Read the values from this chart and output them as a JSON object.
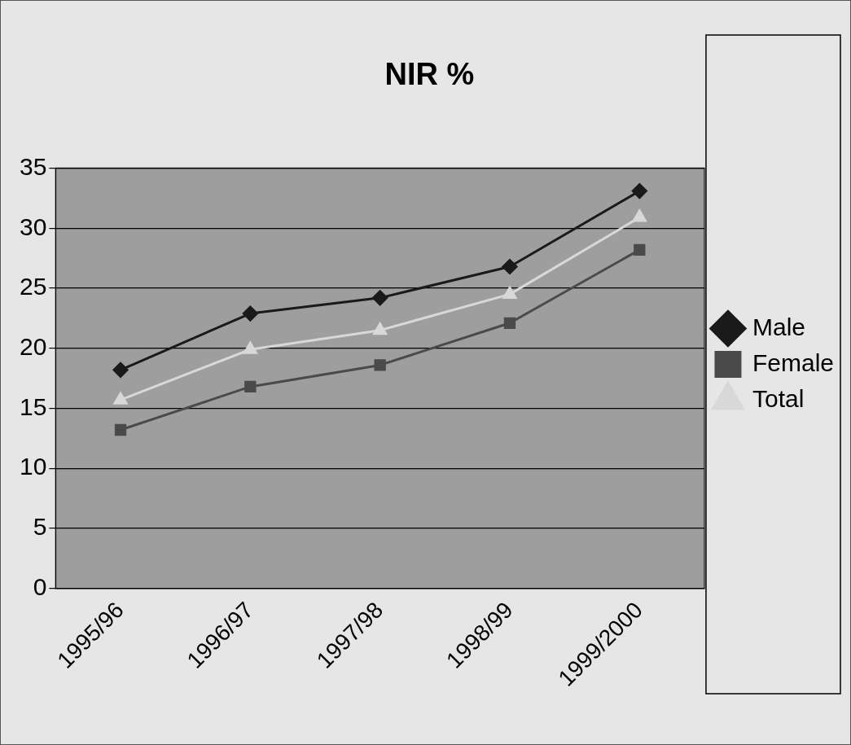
{
  "chart_data": {
    "type": "line",
    "title": "NIR %",
    "categories": [
      "1995/96",
      "1996/97",
      "1997/98",
      "1998/99",
      "1999/2000"
    ],
    "series": [
      {
        "name": "Male",
        "color": "#1a1a1a",
        "marker": "diamond",
        "values": [
          18.2,
          22.9,
          24.2,
          26.8,
          33.1
        ]
      },
      {
        "name": "Female",
        "color": "#4a4a4a",
        "marker": "square",
        "values": [
          13.2,
          16.8,
          18.6,
          22.1,
          28.2
        ]
      },
      {
        "name": "Total",
        "color": "#d8d8d8",
        "marker": "triangle",
        "values": [
          15.7,
          19.9,
          21.5,
          24.5,
          30.9
        ]
      }
    ],
    "ylim": [
      0,
      35
    ],
    "yticks": [
      0,
      5,
      10,
      15,
      20,
      25,
      30,
      35
    ],
    "grid": "y",
    "legend": "right"
  }
}
